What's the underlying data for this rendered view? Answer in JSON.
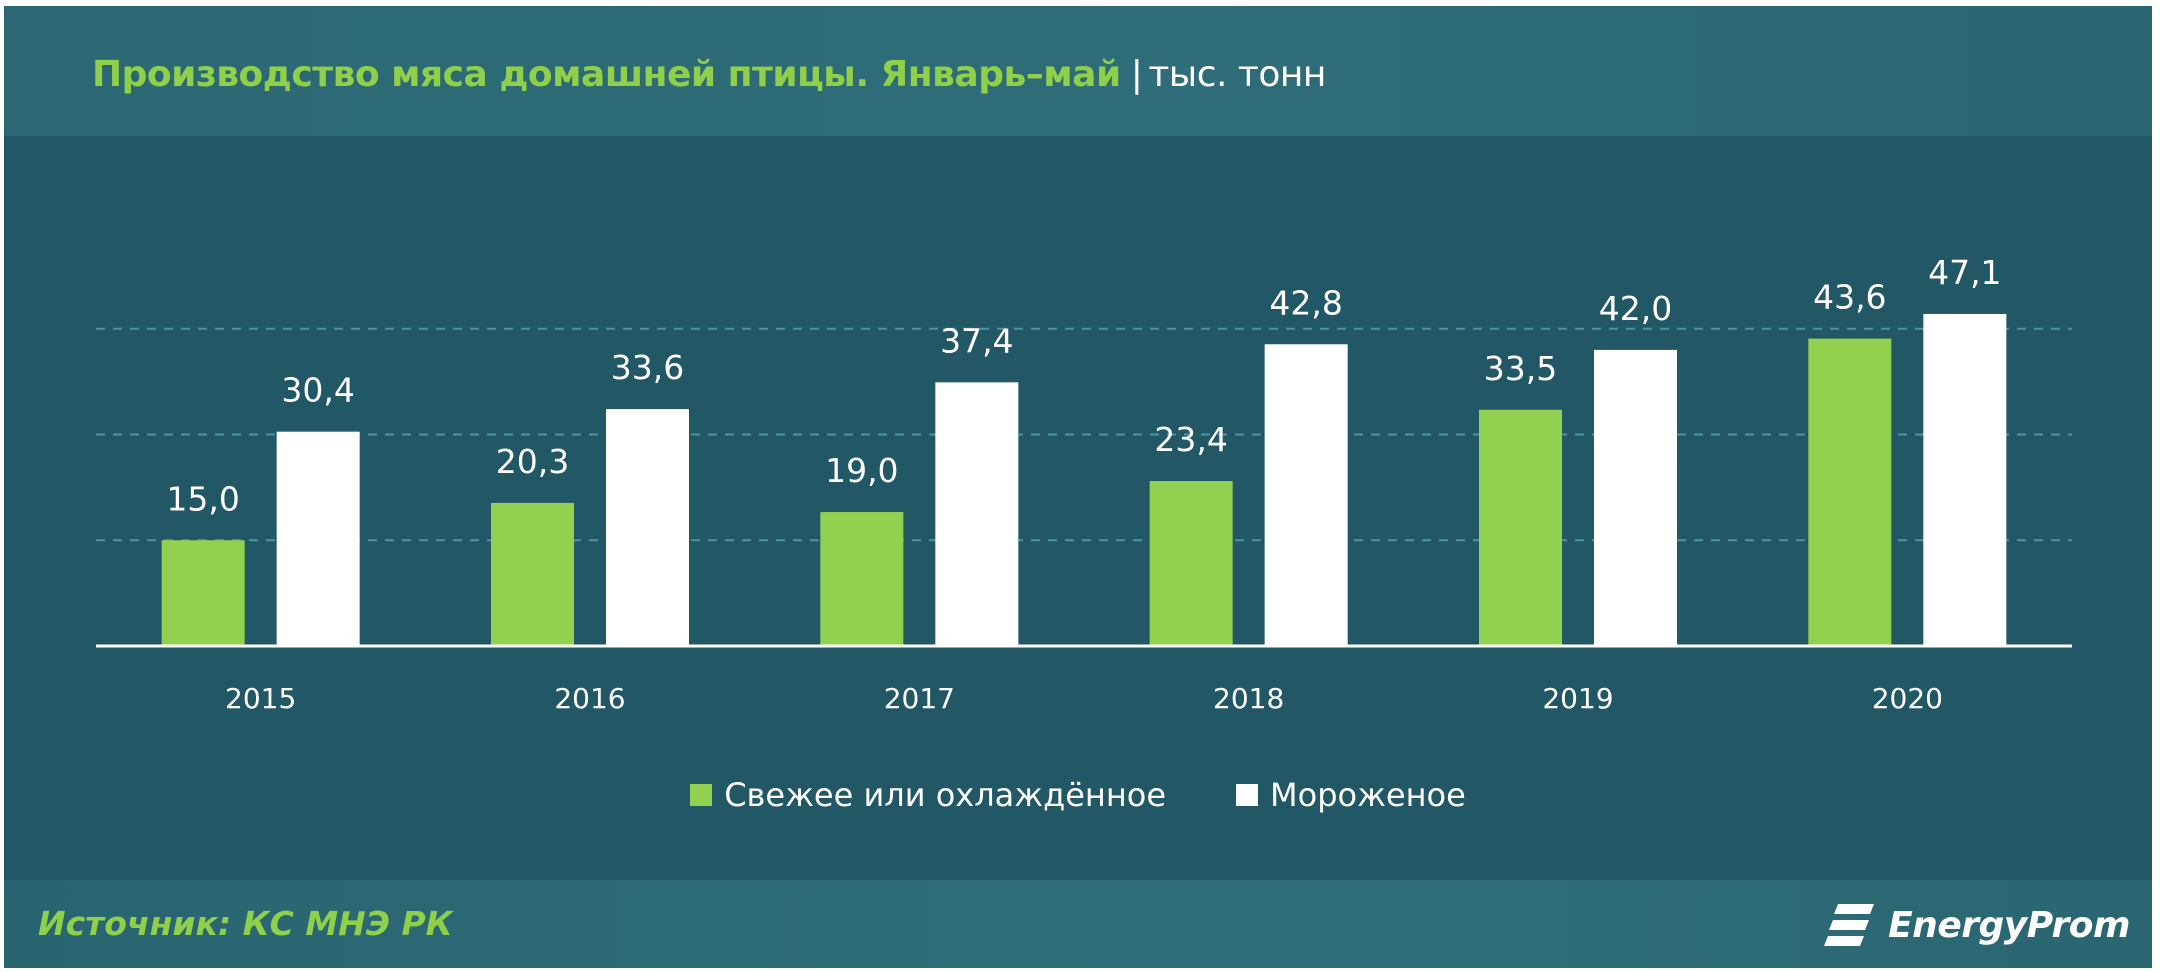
{
  "header": {
    "title": "Производство мяса домашней птицы. Январь–май",
    "separator": "|",
    "unit": "тыс. тонн"
  },
  "colors": {
    "background": "#225766",
    "fresh": "#92d050",
    "frozen": "#ffffff",
    "title": "#8fcf4a"
  },
  "footer": {
    "source": "Источник: КС МНЭ РК",
    "logo_text": "EnergyProm",
    "logo_icon": "energyprom-logo-icon"
  },
  "chart_data": {
    "type": "bar",
    "categories": [
      "2015",
      "2016",
      "2017",
      "2018",
      "2019",
      "2020"
    ],
    "series": [
      {
        "name": "Свежее или охлаждённое",
        "values": [
          15.0,
          20.3,
          19.0,
          23.4,
          33.5,
          43.6
        ],
        "labels": [
          "15,0",
          "20,3",
          "19,0",
          "23,4",
          "33,5",
          "43,6"
        ],
        "color": "#92d050"
      },
      {
        "name": "Мороженое",
        "values": [
          30.4,
          33.6,
          37.4,
          42.8,
          42.0,
          47.1
        ],
        "labels": [
          "30,4",
          "33,6",
          "37,4",
          "42,8",
          "42,0",
          "47,1"
        ],
        "color": "#ffffff"
      }
    ],
    "ylim": [
      0,
      60
    ],
    "gridlines": [
      15,
      30,
      45
    ],
    "grid": true,
    "legend_position": "bottom-center"
  }
}
